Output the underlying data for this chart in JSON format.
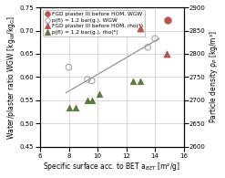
{
  "xlabel": "Specific surface acc. to BET a$_{BET}$ [m²/g]",
  "ylabel_left": "Water/plaster ratio WGW [kg$_W$/kg$_G$]",
  "ylabel_right": "Particle density ρ$_P$ [kg/m³]",
  "xlim": [
    6,
    16
  ],
  "ylim_left": [
    0.45,
    0.75
  ],
  "ylim_right": [
    2600,
    2900
  ],
  "xticks": [
    6,
    8,
    10,
    12,
    14,
    16
  ],
  "yticks_left": [
    0.45,
    0.5,
    0.55,
    0.6,
    0.65,
    0.7,
    0.75
  ],
  "yticks_right": [
    2600,
    2650,
    2700,
    2750,
    2800,
    2850,
    2900
  ],
  "series": [
    {
      "label": "FGD plaster III before HOM, WGW",
      "x": [
        14.9
      ],
      "y": [
        0.722
      ],
      "marker": "o",
      "color": "#b85450",
      "filled": true,
      "size": 28,
      "axis": "left"
    },
    {
      "label": "p(fl) = 1.2 bar(g.), WGW",
      "x": [
        8.0,
        9.3,
        9.6,
        13.5,
        14.0
      ],
      "y": [
        0.621,
        0.595,
        0.592,
        0.664,
        0.683
      ],
      "marker": "o",
      "color": "#999999",
      "filled": false,
      "size": 22,
      "axis": "left"
    },
    {
      "label": "FGD plaster III before HOM, rho(*)",
      "x": [
        13.0,
        14.85
      ],
      "y": [
        2855,
        2800
      ],
      "marker": "^",
      "color": "#b85450",
      "filled": true,
      "size": 25,
      "axis": "right"
    },
    {
      "label": "p(fl) = 1.2 bar(g.), rho(*)",
      "x": [
        8.0,
        8.5,
        9.3,
        9.6,
        10.1,
        12.5,
        13.0
      ],
      "y": [
        2683,
        2683,
        2700,
        2700,
        2714,
        2740,
        2740
      ],
      "marker": "^",
      "color": "#5c7a3e",
      "filled": true,
      "size": 20,
      "axis": "right"
    }
  ],
  "trendline": {
    "x": [
      7.8,
      14.3
    ],
    "y": [
      0.566,
      0.683
    ],
    "color": "#888888",
    "linewidth": 0.8
  },
  "legend_labels": [
    "FGD plaster III before HOM, WGW",
    "p(fl) = 1.2 bar(g.), WGW",
    "FGD plaster III before HOM, rho(*)",
    "p(fl) = 1.2 bar(g.), rho(*)"
  ],
  "legend_markers": [
    "o",
    "o",
    "^",
    "^"
  ],
  "legend_colors": [
    "#b85450",
    "#999999",
    "#b85450",
    "#5c7a3e"
  ],
  "legend_filled": [
    true,
    false,
    true,
    true
  ],
  "legend_fontsize": 4.2,
  "tick_fontsize": 5.0,
  "label_fontsize": 5.5,
  "background_color": "#ffffff",
  "grid_color": "#cccccc"
}
